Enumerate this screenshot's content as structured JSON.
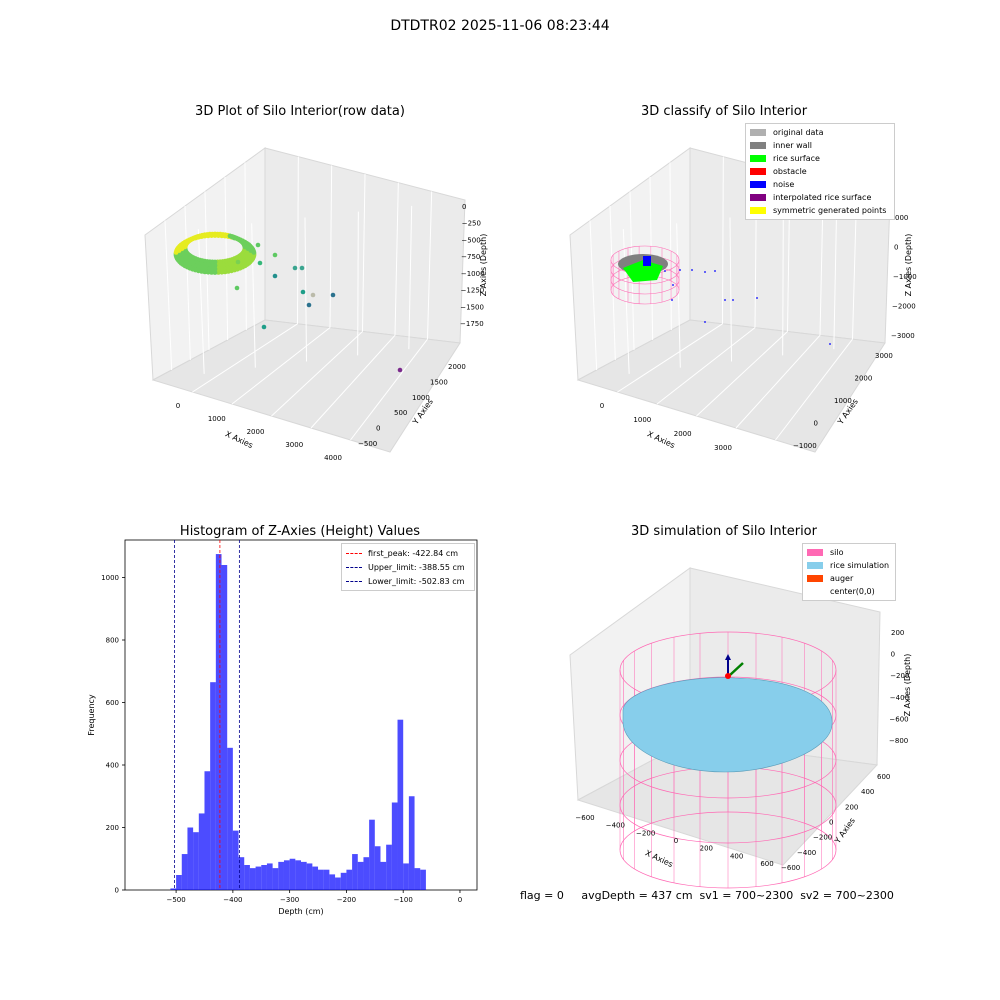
{
  "suptitle": "DTDTR02 2025-11-06 08:23:44",
  "panels": {
    "raw": {
      "title": "3D Plot of Silo Interior(row data)",
      "x_label": "X Axies",
      "y_label": "Y Axies",
      "z_label": "Z Axies (Depth)",
      "x_ticks": [
        "0",
        "1000",
        "2000",
        "3000",
        "4000"
      ],
      "y_ticks": [
        "−500",
        "0",
        "500",
        "1000",
        "1500",
        "2000"
      ],
      "z_ticks": [
        "0",
        "−250",
        "−500",
        "−750",
        "−1000",
        "−1250",
        "−1500",
        "−1750"
      ]
    },
    "classify": {
      "title": "3D classify of Silo Interior",
      "x_label": "X Axies",
      "y_label": "Y Axies",
      "z_label": "Z Axies (Depth)",
      "x_ticks": [
        "0",
        "1000",
        "2000",
        "3000"
      ],
      "y_ticks": [
        "−1000",
        "0",
        "1000",
        "2000",
        "3000"
      ],
      "z_ticks": [
        "000",
        "0",
        "−1000",
        "−2000",
        "−3000"
      ],
      "legend": [
        {
          "label": "original data",
          "color": "#b0b0b0"
        },
        {
          "label": "inner wall",
          "color": "#808080"
        },
        {
          "label": "rice surface",
          "color": "#00ff00"
        },
        {
          "label": "obstacle",
          "color": "#ff0000"
        },
        {
          "label": "noise",
          "color": "#0000ff"
        },
        {
          "label": "interpolated rice surface",
          "color": "#800080"
        },
        {
          "label": "symmetric generated points",
          "color": "#ffff00"
        }
      ]
    },
    "simulation": {
      "title": "3D simulation of Silo Interior",
      "x_label": "X Axies",
      "y_label": "Y Axies",
      "z_label": "Z Axies (Depth)",
      "x_ticks": [
        "−600",
        "−400",
        "−200",
        "0",
        "200",
        "400",
        "600"
      ],
      "y_ticks": [
        "−600",
        "−400",
        "−200",
        "0",
        "200",
        "400",
        "600"
      ],
      "z_ticks": [
        "200",
        "0",
        "−200",
        "−400",
        "−600",
        "−800"
      ],
      "legend": [
        {
          "label": "silo",
          "color": "#ff69b4"
        },
        {
          "label": "rice simulation",
          "color": "#87ceeb"
        },
        {
          "label": "auger",
          "color": "#ff4500"
        },
        {
          "label": "center(0,0)",
          "color": ""
        }
      ]
    }
  },
  "footer": "flag = 0     avgDepth = 437 cm  sv1 = 700~2300  sv2 = 700~2300",
  "chart_data": [
    {
      "type": "histogram",
      "title": "Histogram of Z-Axies (Height) Values",
      "xlabel": "Depth (cm)",
      "ylabel": "Frequency",
      "xlim": [
        -590,
        30
      ],
      "ylim": [
        0,
        1120
      ],
      "x_ticks": [
        -500,
        -400,
        -300,
        -200,
        -100,
        0
      ],
      "y_ticks": [
        0,
        200,
        400,
        600,
        800,
        1000
      ],
      "bin_width": 10,
      "bin_start": -510,
      "values": [
        5,
        48,
        115,
        200,
        185,
        245,
        380,
        665,
        1075,
        1040,
        455,
        190,
        105,
        80,
        70,
        75,
        80,
        85,
        70,
        90,
        95,
        100,
        95,
        90,
        85,
        75,
        65,
        65,
        50,
        40,
        55,
        65,
        115,
        90,
        105,
        225,
        140,
        90,
        145,
        280,
        545,
        85,
        300,
        70,
        65
      ],
      "bar_color": "#0000ff",
      "lines": [
        {
          "label": "first_peak: -422.84 cm",
          "x": -422.84,
          "color": "#ff0000"
        },
        {
          "label": "Upper_limit: -388.55 cm",
          "x": -388.55,
          "color": "#00008b"
        },
        {
          "label": "Lower_limit: -502.83 cm",
          "x": -502.83,
          "color": "#00008b"
        }
      ],
      "legend_position": "top-right"
    }
  ]
}
